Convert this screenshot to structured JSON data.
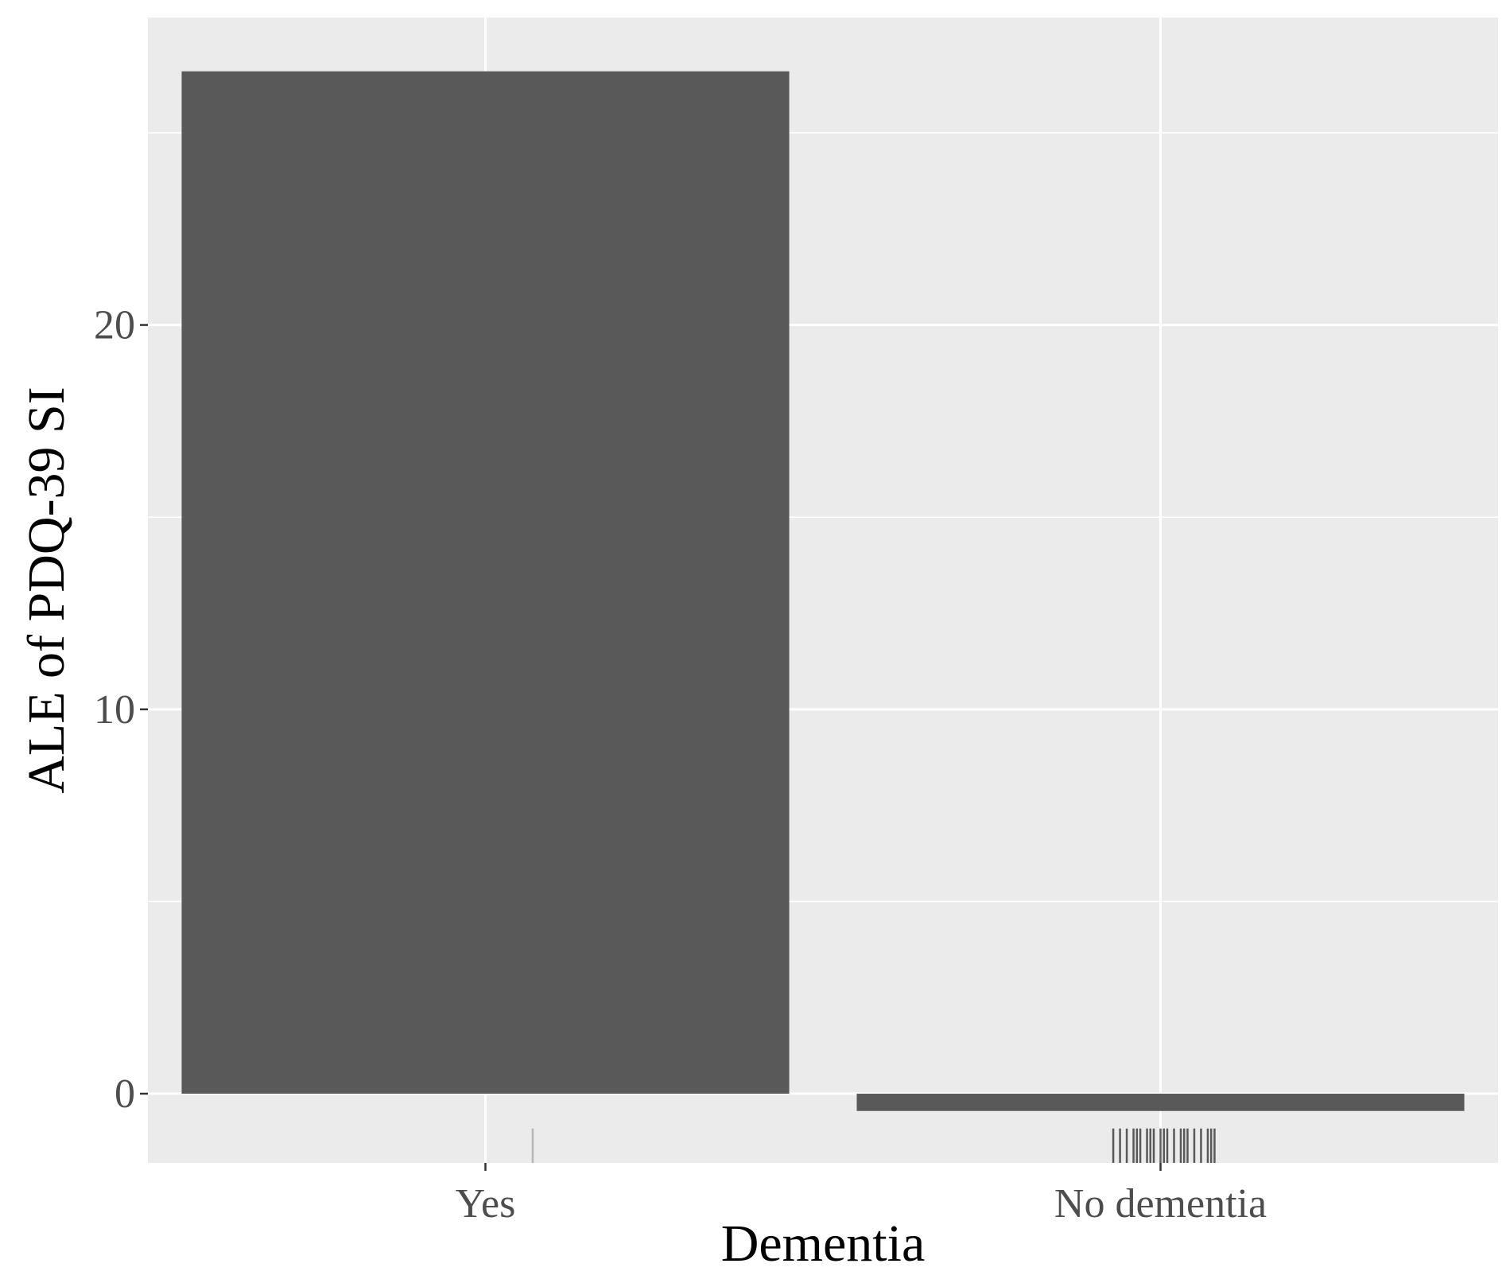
{
  "chart_data": {
    "type": "bar",
    "categories": [
      "Yes",
      "No dementia"
    ],
    "values": [
      26.6,
      -0.45
    ],
    "xlabel": "Dementia",
    "ylabel": "ALE of PDQ-39 SI",
    "ylim": [
      -1.8,
      28.0
    ],
    "yticks": [
      0,
      10,
      20
    ],
    "grid": true,
    "colors": {
      "panel": "#EBEBEB",
      "grid": "#FFFFFF",
      "bar": "#595959",
      "rug": "#1a1a1a"
    },
    "rug": {
      "Yes": [
        0.07
      ],
      "No dementia": [
        -0.07,
        -0.06,
        -0.05,
        -0.04,
        -0.035,
        -0.03,
        -0.02,
        -0.015,
        -0.01,
        0.0,
        0.005,
        0.01,
        0.02,
        0.03,
        0.035,
        0.04,
        0.05,
        0.06,
        0.07,
        0.075,
        0.08
      ]
    }
  }
}
